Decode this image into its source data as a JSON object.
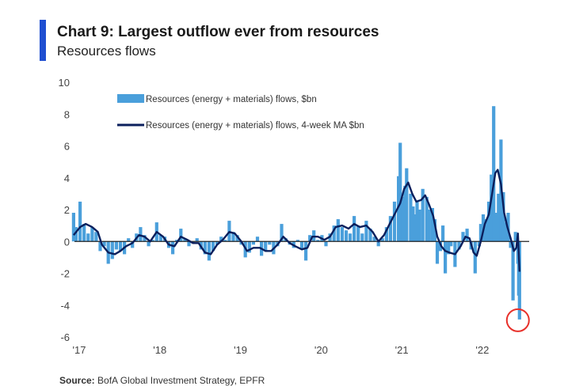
{
  "header": {
    "title": "Chart 9: Largest outflow ever from resources",
    "subtitle": "Resources flows",
    "accent_color": "#1f4fd1"
  },
  "source": {
    "label": "Source:",
    "text": "BofA Global Investment Strategy, EPFR"
  },
  "chart_data": {
    "type": "bar+line",
    "title": "Chart 9: Largest outflow ever from resources",
    "subtitle": "Resources flows",
    "ylim": [
      -6,
      10
    ],
    "yticks": [
      10,
      8,
      6,
      4,
      2,
      0,
      -2,
      -4,
      -6
    ],
    "xlim": [
      2017.0,
      2022.62
    ],
    "xticks": [
      {
        "label": "'17",
        "value": 2017.0
      },
      {
        "label": "'18",
        "value": 2018.0
      },
      {
        "label": "'19",
        "value": 2019.0
      },
      {
        "label": "'20",
        "value": 2020.0
      },
      {
        "label": "'21",
        "value": 2021.0
      },
      {
        "label": "'22",
        "value": 2022.0
      }
    ],
    "legend": {
      "position": "top-left",
      "items": [
        {
          "label": "Resources (energy + materials) flows, $bn",
          "kind": "bar"
        },
        {
          "label": "Resources (energy + materials) flows, 4-week MA $bn",
          "kind": "line"
        }
      ]
    },
    "colors": {
      "bars": "#4a9fdb",
      "line": "#0b1f5c",
      "zero_line": "#222222",
      "highlight": "#e8302a"
    },
    "annotation": {
      "type": "circle",
      "x": 2022.49,
      "y": -4.8,
      "label": "latest week"
    },
    "series": [
      {
        "name": "Resources (energy + materials) flows, $bn",
        "kind": "bar",
        "points": [
          [
            2016.97,
            1.8
          ],
          [
            2017.0,
            0.9
          ],
          [
            2017.05,
            2.5
          ],
          [
            2017.1,
            1.1
          ],
          [
            2017.15,
            0.5
          ],
          [
            2017.2,
            0.9
          ],
          [
            2017.25,
            0.6
          ],
          [
            2017.3,
            -0.6
          ],
          [
            2017.35,
            -0.3
          ],
          [
            2017.4,
            -1.4
          ],
          [
            2017.45,
            -1.1
          ],
          [
            2017.5,
            -0.5
          ],
          [
            2017.55,
            -0.6
          ],
          [
            2017.6,
            -0.8
          ],
          [
            2017.65,
            0.2
          ],
          [
            2017.7,
            -0.4
          ],
          [
            2017.75,
            0.5
          ],
          [
            2017.8,
            0.9
          ],
          [
            2017.85,
            0.4
          ],
          [
            2017.9,
            -0.3
          ],
          [
            2017.95,
            0.1
          ],
          [
            2018.0,
            1.2
          ],
          [
            2018.05,
            0.4
          ],
          [
            2018.1,
            0.3
          ],
          [
            2018.15,
            -0.4
          ],
          [
            2018.2,
            -0.8
          ],
          [
            2018.25,
            0.1
          ],
          [
            2018.3,
            0.8
          ],
          [
            2018.35,
            0.2
          ],
          [
            2018.4,
            -0.3
          ],
          [
            2018.45,
            -0.1
          ],
          [
            2018.5,
            0.2
          ],
          [
            2018.55,
            -0.5
          ],
          [
            2018.6,
            -0.8
          ],
          [
            2018.65,
            -1.2
          ],
          [
            2018.7,
            -0.6
          ],
          [
            2018.75,
            -0.2
          ],
          [
            2018.8,
            0.3
          ],
          [
            2018.85,
            0.1
          ],
          [
            2018.9,
            1.3
          ],
          [
            2018.95,
            0.6
          ],
          [
            2019.0,
            0.4
          ],
          [
            2019.05,
            -0.2
          ],
          [
            2019.1,
            -1.0
          ],
          [
            2019.15,
            -0.7
          ],
          [
            2019.2,
            -0.2
          ],
          [
            2019.25,
            0.3
          ],
          [
            2019.3,
            -0.9
          ],
          [
            2019.35,
            -0.6
          ],
          [
            2019.4,
            -0.2
          ],
          [
            2019.45,
            -0.8
          ],
          [
            2019.5,
            -0.3
          ],
          [
            2019.55,
            1.1
          ],
          [
            2019.6,
            0.2
          ],
          [
            2019.65,
            -0.2
          ],
          [
            2019.7,
            -0.4
          ],
          [
            2019.75,
            0.1
          ],
          [
            2019.8,
            -0.5
          ],
          [
            2019.85,
            -1.2
          ],
          [
            2019.9,
            0.4
          ],
          [
            2019.95,
            0.7
          ],
          [
            2020.0,
            0.1
          ],
          [
            2020.05,
            0.4
          ],
          [
            2020.1,
            -0.3
          ],
          [
            2020.15,
            0.5
          ],
          [
            2020.2,
            1.0
          ],
          [
            2020.25,
            1.4
          ],
          [
            2020.3,
            0.9
          ],
          [
            2020.35,
            0.7
          ],
          [
            2020.4,
            0.5
          ],
          [
            2020.45,
            1.6
          ],
          [
            2020.5,
            1.0
          ],
          [
            2020.55,
            0.5
          ],
          [
            2020.6,
            1.3
          ],
          [
            2020.65,
            0.8
          ],
          [
            2020.7,
            0.3
          ],
          [
            2020.75,
            -0.3
          ],
          [
            2020.8,
            0.2
          ],
          [
            2020.85,
            0.9
          ],
          [
            2020.9,
            1.6
          ],
          [
            2020.95,
            2.5
          ],
          [
            2021.0,
            4.1
          ],
          [
            2021.02,
            6.2
          ],
          [
            2021.05,
            2.8
          ],
          [
            2021.08,
            3.5
          ],
          [
            2021.1,
            4.6
          ],
          [
            2021.15,
            3.0
          ],
          [
            2021.18,
            2.2
          ],
          [
            2021.2,
            1.7
          ],
          [
            2021.23,
            2.5
          ],
          [
            2021.26,
            2.0
          ],
          [
            2021.3,
            3.3
          ],
          [
            2021.35,
            2.8
          ],
          [
            2021.38,
            2.0
          ],
          [
            2021.42,
            2.1
          ],
          [
            2021.45,
            1.4
          ],
          [
            2021.48,
            -1.4
          ],
          [
            2021.52,
            -0.6
          ],
          [
            2021.55,
            1.0
          ],
          [
            2021.58,
            -2.0
          ],
          [
            2021.62,
            -0.8
          ],
          [
            2021.65,
            -0.3
          ],
          [
            2021.7,
            -1.6
          ],
          [
            2021.75,
            -0.5
          ],
          [
            2021.8,
            0.6
          ],
          [
            2021.85,
            0.8
          ],
          [
            2021.9,
            -0.5
          ],
          [
            2021.95,
            -2.0
          ],
          [
            2022.0,
            -0.3
          ],
          [
            2022.02,
            1.1
          ],
          [
            2022.05,
            1.7
          ],
          [
            2022.08,
            1.4
          ],
          [
            2022.12,
            2.5
          ],
          [
            2022.15,
            4.2
          ],
          [
            2022.18,
            8.5
          ],
          [
            2022.21,
            1.8
          ],
          [
            2022.24,
            3.0
          ],
          [
            2022.27,
            6.4
          ],
          [
            2022.3,
            3.1
          ],
          [
            2022.33,
            1.2
          ],
          [
            2022.36,
            1.8
          ],
          [
            2022.39,
            -0.4
          ],
          [
            2022.42,
            -3.7
          ],
          [
            2022.45,
            0.6
          ],
          [
            2022.48,
            -1.4
          ],
          [
            2022.49,
            -3.4
          ],
          [
            2022.5,
            -4.9
          ]
        ]
      },
      {
        "name": "Resources (energy + materials) flows, 4-week MA $bn",
        "kind": "line",
        "points": [
          [
            2016.97,
            0.4
          ],
          [
            2017.05,
            0.9
          ],
          [
            2017.12,
            1.1
          ],
          [
            2017.2,
            0.9
          ],
          [
            2017.27,
            0.6
          ],
          [
            2017.32,
            -0.2
          ],
          [
            2017.4,
            -0.7
          ],
          [
            2017.48,
            -0.8
          ],
          [
            2017.55,
            -0.6
          ],
          [
            2017.62,
            -0.3
          ],
          [
            2017.7,
            -0.1
          ],
          [
            2017.78,
            0.4
          ],
          [
            2017.85,
            0.3
          ],
          [
            2017.92,
            0.0
          ],
          [
            2018.0,
            0.6
          ],
          [
            2018.08,
            0.3
          ],
          [
            2018.15,
            -0.2
          ],
          [
            2018.22,
            -0.3
          ],
          [
            2018.3,
            0.3
          ],
          [
            2018.38,
            0.1
          ],
          [
            2018.45,
            -0.1
          ],
          [
            2018.52,
            -0.1
          ],
          [
            2018.6,
            -0.7
          ],
          [
            2018.67,
            -0.8
          ],
          [
            2018.75,
            -0.2
          ],
          [
            2018.82,
            0.1
          ],
          [
            2018.9,
            0.6
          ],
          [
            2018.97,
            0.5
          ],
          [
            2019.05,
            0.0
          ],
          [
            2019.12,
            -0.6
          ],
          [
            2019.2,
            -0.4
          ],
          [
            2019.28,
            -0.4
          ],
          [
            2019.35,
            -0.6
          ],
          [
            2019.42,
            -0.6
          ],
          [
            2019.5,
            -0.2
          ],
          [
            2019.57,
            0.3
          ],
          [
            2019.65,
            -0.1
          ],
          [
            2019.72,
            -0.3
          ],
          [
            2019.8,
            -0.5
          ],
          [
            2019.87,
            -0.4
          ],
          [
            2019.93,
            0.3
          ],
          [
            2020.0,
            0.3
          ],
          [
            2020.08,
            0.1
          ],
          [
            2020.15,
            0.3
          ],
          [
            2020.22,
            0.9
          ],
          [
            2020.3,
            1.0
          ],
          [
            2020.38,
            0.8
          ],
          [
            2020.45,
            1.1
          ],
          [
            2020.52,
            0.9
          ],
          [
            2020.6,
            1.0
          ],
          [
            2020.68,
            0.6
          ],
          [
            2020.75,
            0.0
          ],
          [
            2020.82,
            0.4
          ],
          [
            2020.9,
            1.2
          ],
          [
            2020.97,
            1.9
          ],
          [
            2021.02,
            2.4
          ],
          [
            2021.07,
            3.3
          ],
          [
            2021.12,
            3.7
          ],
          [
            2021.17,
            3.0
          ],
          [
            2021.22,
            2.5
          ],
          [
            2021.28,
            2.6
          ],
          [
            2021.33,
            2.9
          ],
          [
            2021.38,
            2.3
          ],
          [
            2021.43,
            1.6
          ],
          [
            2021.48,
            0.3
          ],
          [
            2021.53,
            -0.3
          ],
          [
            2021.58,
            -0.6
          ],
          [
            2021.63,
            -0.7
          ],
          [
            2021.7,
            -0.8
          ],
          [
            2021.77,
            -0.3
          ],
          [
            2021.83,
            0.3
          ],
          [
            2021.88,
            0.2
          ],
          [
            2021.93,
            -0.7
          ],
          [
            2021.97,
            -0.9
          ],
          [
            2022.02,
            0.0
          ],
          [
            2022.07,
            1.1
          ],
          [
            2022.12,
            1.7
          ],
          [
            2022.16,
            3.0
          ],
          [
            2022.2,
            4.3
          ],
          [
            2022.23,
            4.5
          ],
          [
            2022.27,
            3.6
          ],
          [
            2022.31,
            1.8
          ],
          [
            2022.35,
            0.9
          ],
          [
            2022.39,
            0.2
          ],
          [
            2022.43,
            -0.6
          ],
          [
            2022.46,
            -0.4
          ],
          [
            2022.48,
            0.5
          ],
          [
            2022.5,
            -1.9
          ]
        ]
      }
    ]
  }
}
